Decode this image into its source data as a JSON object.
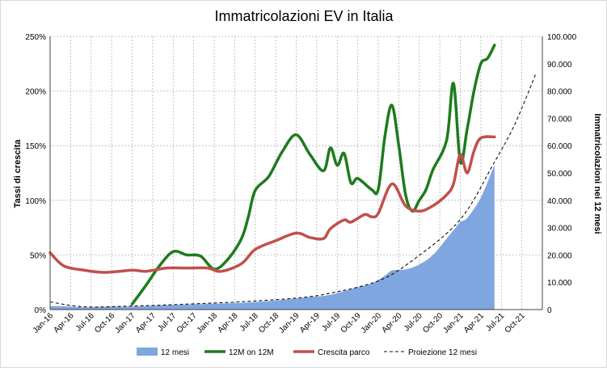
{
  "chart_data": {
    "type": "line",
    "title": "Immatricolazioni EV in Italia",
    "ylabel_left": "Tassi di crescita",
    "ylabel_right": "Immatricolazioni nei 12 mesi",
    "left_axis": {
      "min": 0,
      "max": 250,
      "step": 50,
      "tick_labels": [
        "0%",
        "50%",
        "100%",
        "150%",
        "200%",
        "250%"
      ]
    },
    "right_axis": {
      "min": 0,
      "max": 100000,
      "step": 10000,
      "tick_labels": [
        "0",
        "10.000",
        "20.000",
        "30.000",
        "40.000",
        "50.000",
        "60.000",
        "70.000",
        "80.000",
        "90.000",
        "100.000"
      ]
    },
    "x_axis": {
      "start": "Jan-16",
      "end": "Dec-21",
      "tick_labels": [
        "Jan-16",
        "Apr-16",
        "Jul-16",
        "Oct-16",
        "Jan-17",
        "Apr-17",
        "Jul-17",
        "Oct-17",
        "Jan-18",
        "Apr-18",
        "Jul-18",
        "Oct-18",
        "Jan-19",
        "Apr-19",
        "Jul-19",
        "Oct-19",
        "Jan-20",
        "Apr-20",
        "Jul-20",
        "Oct-20",
        "Jan-21",
        "Apr-21",
        "Jul-21",
        "Oct-21"
      ]
    },
    "grid": true,
    "legend_position": "bottom",
    "series": [
      {
        "name": "12 mesi",
        "kind": "area",
        "axis": "right",
        "color": "#7fa6de",
        "months": [
          "2016-01",
          "2016-03",
          "2016-06",
          "2016-09",
          "2017-01",
          "2017-06",
          "2017-12",
          "2018-06",
          "2018-12",
          "2019-03",
          "2019-06",
          "2019-09",
          "2019-12",
          "2020-02",
          "2020-03",
          "2020-05",
          "2020-07",
          "2020-09",
          "2020-11",
          "2020-12",
          "2021-01",
          "2021-02",
          "2021-04",
          "2021-06"
        ],
        "values": [
          1300,
          1200,
          800,
          1000,
          1100,
          1600,
          2100,
          2600,
          3800,
          4600,
          5400,
          7500,
          9500,
          12500,
          14300,
          14700,
          16500,
          20000,
          26000,
          29000,
          32000,
          33500,
          41000,
          53000
        ]
      },
      {
        "name": "12M on 12M",
        "kind": "line",
        "axis": "left",
        "color": "#1e7b1e",
        "months": [
          "2017-01",
          "2017-03",
          "2017-05",
          "2017-07",
          "2017-09",
          "2017-11",
          "2018-01",
          "2018-03",
          "2018-05",
          "2018-06",
          "2018-07",
          "2018-09",
          "2018-11",
          "2019-01",
          "2019-03",
          "2019-05",
          "2019-06",
          "2019-07",
          "2019-08",
          "2019-09",
          "2019-10",
          "2019-12",
          "2020-01",
          "2020-02",
          "2020-03",
          "2020-04",
          "2020-05",
          "2020-06",
          "2020-07",
          "2020-08",
          "2020-09",
          "2020-11",
          "2020-12",
          "2021-01",
          "2021-02",
          "2021-03",
          "2021-04",
          "2021-05",
          "2021-06"
        ],
        "values": [
          5,
          22,
          40,
          53,
          50,
          49,
          37,
          46,
          65,
          85,
          109,
          122,
          145,
          160,
          142,
          127,
          148,
          132,
          143,
          116,
          120,
          110,
          110,
          160,
          187,
          150,
          105,
          90,
          100,
          110,
          128,
          155,
          207,
          135,
          165,
          200,
          225,
          230,
          242
        ]
      },
      {
        "name": "Crescita parco",
        "kind": "line",
        "axis": "left",
        "color": "#c0504d",
        "months": [
          "2016-01",
          "2016-03",
          "2016-06",
          "2016-09",
          "2017-01",
          "2017-03",
          "2017-06",
          "2017-09",
          "2017-12",
          "2018-02",
          "2018-05",
          "2018-07",
          "2018-10",
          "2019-01",
          "2019-03",
          "2019-05",
          "2019-06",
          "2019-08",
          "2019-09",
          "2019-11",
          "2019-12",
          "2020-01",
          "2020-03",
          "2020-05",
          "2020-07",
          "2020-09",
          "2020-11",
          "2020-12",
          "2021-01",
          "2021-02",
          "2021-03",
          "2021-04",
          "2021-06"
        ],
        "values": [
          52,
          40,
          36,
          34,
          36,
          35,
          38,
          38,
          38,
          35,
          42,
          55,
          63,
          70,
          66,
          65,
          74,
          82,
          80,
          87,
          85,
          88,
          115,
          95,
          90,
          95,
          105,
          115,
          142,
          125,
          145,
          157,
          158
        ]
      },
      {
        "name": "Proiezione 12 mesi",
        "kind": "dashed",
        "axis": "right",
        "color": "#111111",
        "months": [
          "2016-01",
          "2016-06",
          "2017-01",
          "2017-06",
          "2018-01",
          "2018-06",
          "2019-01",
          "2019-06",
          "2020-01",
          "2020-06",
          "2021-01",
          "2021-06",
          "2021-09",
          "2021-12"
        ],
        "values": [
          2800,
          1000,
          1300,
          1700,
          2400,
          3000,
          4200,
          6000,
          10500,
          18000,
          33000,
          54000,
          68000,
          86000
        ]
      }
    ]
  }
}
